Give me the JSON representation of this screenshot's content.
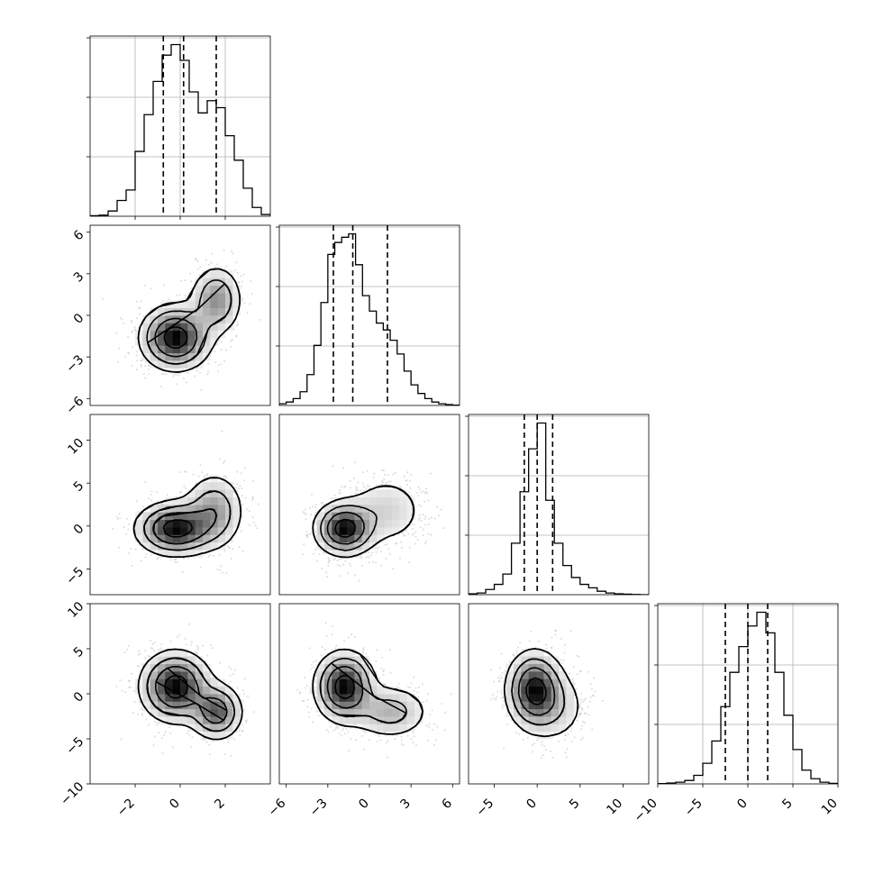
{
  "chart_data": [
    {
      "type": "histogram",
      "panel": "hist-x0",
      "row": 0,
      "col": 0,
      "xlim": [
        -4,
        4
      ],
      "xticks": [
        "−2",
        "0",
        "2"
      ],
      "quantiles": [
        -0.75,
        0.15,
        1.6
      ],
      "bins": [
        -4.0,
        -3.6,
        -3.2,
        -2.8,
        -2.4,
        -2.0,
        -1.6,
        -1.2,
        -0.8,
        -0.4,
        0.0,
        0.4,
        0.8,
        1.2,
        1.6,
        2.0,
        2.4,
        2.8,
        3.2,
        3.6,
        4.0
      ],
      "values": [
        0.003,
        0.006,
        0.03,
        0.09,
        0.15,
        0.37,
        0.58,
        0.77,
        0.92,
        0.98,
        0.89,
        0.71,
        0.59,
        0.66,
        0.62,
        0.46,
        0.32,
        0.16,
        0.05,
        0.01
      ],
      "grid": true
    },
    {
      "type": "histogram",
      "panel": "hist-x1",
      "row": 1,
      "col": 1,
      "xlim": [
        -6.5,
        6.5
      ],
      "quantiles": [
        -2.6,
        -1.2,
        1.3
      ],
      "bins": [
        -6.5,
        -6.0,
        -5.5,
        -5.0,
        -4.5,
        -4.0,
        -3.5,
        -3.0,
        -2.5,
        -2.0,
        -1.5,
        -1.0,
        -0.5,
        0.0,
        0.5,
        1.0,
        1.5,
        2.0,
        2.5,
        3.0,
        3.5,
        4.0,
        4.5,
        5.0,
        5.5,
        6.0,
        6.5
      ],
      "values": [
        0.01,
        0.02,
        0.04,
        0.08,
        0.18,
        0.35,
        0.6,
        0.88,
        0.95,
        0.98,
        1.0,
        0.82,
        0.64,
        0.55,
        0.48,
        0.44,
        0.38,
        0.3,
        0.2,
        0.12,
        0.07,
        0.04,
        0.02,
        0.01,
        0.005,
        0.002
      ],
      "grid": true
    },
    {
      "type": "histogram",
      "panel": "hist-x2",
      "row": 2,
      "col": 2,
      "xlim": [
        -8,
        13
      ],
      "quantiles": [
        -1.5,
        0.0,
        1.8
      ],
      "bins": [
        -8,
        -7,
        -6,
        -5,
        -4,
        -3,
        -2,
        -1,
        0,
        1,
        2,
        3,
        4,
        5,
        6,
        7,
        8,
        9,
        10,
        11,
        12,
        13
      ],
      "values": [
        0.005,
        0.01,
        0.03,
        0.06,
        0.12,
        0.3,
        0.6,
        0.85,
        1.0,
        0.55,
        0.3,
        0.17,
        0.1,
        0.06,
        0.04,
        0.02,
        0.01,
        0.005,
        0.003,
        0.001,
        0.0
      ],
      "grid": true
    },
    {
      "type": "histogram",
      "panel": "hist-x3",
      "row": 3,
      "col": 3,
      "xlim": [
        -10,
        10
      ],
      "xticks": [
        "−10",
        "−5",
        "0",
        "5",
        "10"
      ],
      "quantiles": [
        -2.5,
        0.0,
        2.2
      ],
      "bins": [
        -10,
        -9,
        -8,
        -7,
        -6,
        -5,
        -4,
        -3,
        -2,
        -1,
        0,
        1,
        2,
        3,
        4,
        5,
        6,
        7,
        8,
        9,
        10
      ],
      "values": [
        0.002,
        0.005,
        0.01,
        0.02,
        0.05,
        0.12,
        0.25,
        0.45,
        0.65,
        0.8,
        0.92,
        1.0,
        0.88,
        0.65,
        0.4,
        0.2,
        0.08,
        0.03,
        0.01,
        0.003
      ],
      "grid": true
    },
    {
      "type": "scatter",
      "panel": "joint-x0-x1",
      "row": 1,
      "col": 0,
      "xlim": [
        -4,
        4
      ],
      "ylim": [
        -6.5,
        6.5
      ],
      "yticks": [
        "−6",
        "−3",
        "0",
        "3",
        "6"
      ],
      "components": [
        {
          "mx": -0.2,
          "my": -1.6,
          "sx": 0.8,
          "sy": 1.2,
          "w": 0.7
        },
        {
          "mx": 1.6,
          "my": 1.1,
          "sx": 0.6,
          "sy": 1.3,
          "w": 0.3
        }
      ]
    },
    {
      "type": "scatter",
      "panel": "joint-x0-x2",
      "row": 2,
      "col": 0,
      "xlim": [
        -4,
        4
      ],
      "ylim": [
        -8,
        13
      ],
      "yticks": [
        "−5",
        "0",
        "5",
        "10"
      ],
      "components": [
        {
          "mx": -0.2,
          "my": -0.3,
          "sx": 0.9,
          "sy": 1.6,
          "w": 0.65
        },
        {
          "mx": 1.5,
          "my": 1.8,
          "sx": 0.7,
          "sy": 2.3,
          "w": 0.35
        }
      ]
    },
    {
      "type": "scatter",
      "panel": "joint-x1-x2",
      "row": 2,
      "col": 1,
      "xlim": [
        -6.5,
        6.5
      ],
      "ylim": [
        -8,
        13
      ],
      "components": [
        {
          "mx": -1.8,
          "my": -0.3,
          "sx": 1.1,
          "sy": 1.6,
          "w": 0.65
        },
        {
          "mx": 1.2,
          "my": 1.8,
          "sx": 1.6,
          "sy": 2.3,
          "w": 0.35
        }
      ]
    },
    {
      "type": "scatter",
      "panel": "joint-x0-x3",
      "row": 3,
      "col": 0,
      "xlim": [
        -4,
        4
      ],
      "ylim": [
        -10,
        10
      ],
      "xticks": [
        "−2",
        "0",
        "2"
      ],
      "yticks": [
        "−10",
        "−5",
        "0",
        "5",
        "10"
      ],
      "components": [
        {
          "mx": -0.2,
          "my": 0.8,
          "sx": 0.8,
          "sy": 2.0,
          "w": 0.7
        },
        {
          "mx": 1.6,
          "my": -2.0,
          "sx": 0.6,
          "sy": 1.6,
          "w": 0.3
        }
      ]
    },
    {
      "type": "scatter",
      "panel": "joint-x1-x3",
      "row": 3,
      "col": 1,
      "xlim": [
        -6.5,
        6.5
      ],
      "ylim": [
        -10,
        10
      ],
      "xticks": [
        "−6",
        "−3",
        "0",
        "3",
        "6"
      ],
      "components": [
        {
          "mx": -1.8,
          "my": 0.8,
          "sx": 1.1,
          "sy": 2.0,
          "w": 0.7
        },
        {
          "mx": 1.5,
          "my": -2.0,
          "sx": 1.5,
          "sy": 1.6,
          "w": 0.3
        }
      ]
    },
    {
      "type": "scatter",
      "panel": "joint-x2-x3",
      "row": 3,
      "col": 2,
      "xlim": [
        -8,
        13
      ],
      "ylim": [
        -10,
        10
      ],
      "xticks": [
        "−5",
        "0",
        "5",
        "10"
      ],
      "components": [
        {
          "mx": -0.3,
          "my": 0.5,
          "sx": 1.7,
          "sy": 2.2,
          "w": 0.75
        },
        {
          "mx": 2.0,
          "my": -1.5,
          "sx": 2.2,
          "sy": 2.2,
          "w": 0.25
        }
      ]
    }
  ]
}
